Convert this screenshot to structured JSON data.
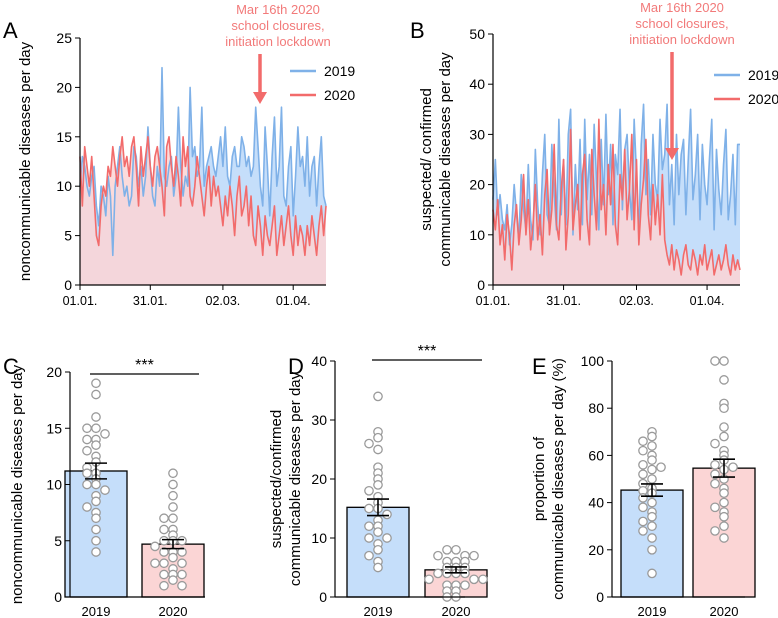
{
  "chart_data": [
    {
      "panel": "A",
      "type": "area",
      "ylabel": "noncommunicable diseases per day",
      "ylim": [
        0,
        25
      ],
      "yticks": [
        0,
        5,
        10,
        15,
        20,
        25
      ],
      "xlim": [
        0,
        105
      ],
      "xticks": [
        {
          "label": "01.01.",
          "day": 0
        },
        {
          "label": "31.01.",
          "day": 30
        },
        {
          "label": "02.03.",
          "day": 61
        },
        {
          "label": "01.04.",
          "day": 91
        }
      ],
      "annotation": {
        "lines": [
          "Mar 16th 2020",
          "school closures,",
          "initiation lockdown"
        ],
        "day": 75
      },
      "legend": {
        "position": "top-right",
        "entries": [
          "2019",
          "2020"
        ]
      },
      "series": [
        {
          "name": "2019",
          "color": "#7fb1e8",
          "fill": "#c5defa",
          "values": [
            10,
            13,
            12,
            10,
            9,
            11,
            12,
            8,
            6,
            10,
            9,
            7,
            11,
            9,
            3,
            10,
            12,
            14,
            11,
            9,
            10,
            8,
            9,
            14,
            13,
            10,
            12,
            9,
            11,
            16,
            12,
            9,
            8,
            12,
            10,
            22,
            11,
            10,
            12,
            13,
            9,
            11,
            18,
            12,
            9,
            11,
            10,
            20,
            13,
            14,
            11,
            12,
            18,
            10,
            12,
            13,
            14,
            12,
            11,
            13,
            15,
            12,
            16,
            11,
            10,
            13,
            14,
            12,
            12,
            15,
            14,
            12,
            13,
            11,
            12,
            18,
            14,
            10,
            8,
            16,
            12,
            7,
            13,
            17,
            10,
            12,
            18,
            9,
            8,
            12,
            14,
            7,
            11,
            16,
            12,
            13,
            10,
            15,
            9,
            12,
            13,
            8,
            12,
            15,
            9,
            8
          ]
        },
        {
          "name": "2020",
          "color": "#f26b6b",
          "fill": "#fbd5d5",
          "values": [
            13,
            8,
            14,
            12,
            10,
            13,
            9,
            5,
            4,
            8,
            10,
            9,
            12,
            11,
            14,
            12,
            10,
            13,
            15,
            12,
            13,
            11,
            14,
            15,
            12,
            8,
            14,
            11,
            13,
            15,
            12,
            10,
            13,
            14,
            12,
            10,
            7,
            14,
            15,
            12,
            10,
            13,
            11,
            8,
            15,
            12,
            14,
            9,
            8,
            10,
            13,
            11,
            9,
            7,
            10,
            12,
            8,
            11,
            9,
            10,
            8,
            6,
            9,
            7,
            10,
            8,
            5,
            9,
            11,
            7,
            8,
            10,
            6,
            9,
            5,
            4,
            8,
            6,
            3,
            7,
            5,
            4,
            6,
            8,
            3,
            5,
            7,
            4,
            6,
            8,
            5,
            3,
            7,
            4,
            6,
            5,
            3,
            6,
            4,
            7,
            5,
            3,
            6,
            8,
            5,
            8
          ]
        }
      ]
    },
    {
      "panel": "B",
      "type": "area",
      "ylabel": [
        "suspected/ confirmed",
        "communicable diseases per day"
      ],
      "ylim": [
        0,
        50
      ],
      "yticks": [
        0,
        10,
        20,
        30,
        40,
        50
      ],
      "xlim": [
        0,
        105
      ],
      "xticks": [
        {
          "label": "01.01.",
          "day": 0
        },
        {
          "label": "31.01.",
          "day": 30
        },
        {
          "label": "02.03.",
          "day": 61
        },
        {
          "label": "01.04.",
          "day": 91
        }
      ],
      "annotation": {
        "lines": [
          "Mar 16th 2020",
          "school closures,",
          "initiation lockdown"
        ],
        "day": 75
      },
      "legend": {
        "position": "top-right",
        "entries": [
          "2019",
          "2020"
        ]
      },
      "series": [
        {
          "name": "2019",
          "color": "#7fb1e8",
          "fill": "#c5defa",
          "values": [
            17,
            25,
            14,
            18,
            13,
            11,
            16,
            8,
            12,
            20,
            14,
            9,
            22,
            15,
            11,
            24,
            13,
            9,
            27,
            16,
            10,
            22,
            30,
            14,
            12,
            28,
            18,
            11,
            33,
            14,
            25,
            12,
            30,
            35,
            10,
            24,
            15,
            29,
            12,
            33,
            17,
            26,
            14,
            32,
            21,
            11,
            29,
            16,
            34,
            18,
            28,
            12,
            26,
            22,
            35,
            15,
            27,
            30,
            19,
            13,
            33,
            22,
            10,
            28,
            36,
            18,
            25,
            14,
            30,
            20,
            17,
            33,
            23,
            26,
            36,
            16,
            24,
            12,
            30,
            18,
            26,
            29,
            14,
            25,
            35,
            17,
            22,
            30,
            13,
            28,
            20,
            16,
            25,
            33,
            11,
            27,
            19,
            14,
            24,
            31,
            13,
            18,
            26,
            12,
            28,
            28
          ]
        },
        {
          "name": "2020",
          "color": "#f26b6b",
          "fill": "#fbd5d5",
          "values": [
            15,
            11,
            17,
            8,
            12,
            5,
            14,
            10,
            3,
            12,
            16,
            8,
            13,
            22,
            10,
            17,
            7,
            12,
            20,
            9,
            14,
            6,
            18,
            23,
            10,
            15,
            28,
            12,
            9,
            19,
            25,
            7,
            14,
            31,
            11,
            16,
            20,
            9,
            22,
            26,
            13,
            8,
            27,
            18,
            11,
            33,
            15,
            20,
            10,
            24,
            16,
            28,
            12,
            8,
            22,
            17,
            27,
            13,
            19,
            30,
            11,
            25,
            8,
            16,
            21,
            29,
            14,
            9,
            20,
            12,
            18,
            10,
            22,
            9,
            6,
            4,
            8,
            3,
            7,
            5,
            2,
            6,
            8,
            4,
            3,
            7,
            5,
            2,
            6,
            4,
            8,
            3,
            5,
            7,
            2,
            4,
            6,
            3,
            5,
            8,
            4,
            2,
            6,
            3,
            5,
            3
          ]
        }
      ]
    },
    {
      "panel": "C",
      "type": "bar",
      "categories": [
        "2019",
        "2020"
      ],
      "means": [
        11.2,
        4.7
      ],
      "sem": [
        0.7,
        0.4
      ],
      "ylabel": "noncommunicable diseases per day",
      "ylim": [
        0,
        20
      ],
      "yticks": [
        0,
        5,
        10,
        15,
        20
      ],
      "significance": "***",
      "points": [
        [
          19,
          18,
          16,
          15,
          15,
          14.5,
          14,
          14,
          13.5,
          13,
          12.5,
          12,
          11.5,
          11,
          11,
          10.5,
          10,
          10,
          9.5,
          9,
          8.5,
          8,
          7.5,
          7,
          6,
          5,
          4
        ],
        [
          11,
          10,
          9,
          8,
          7,
          7,
          6,
          6,
          5.5,
          5,
          5,
          5,
          4.5,
          4,
          4,
          4,
          3.5,
          3,
          3,
          3,
          2.5,
          2,
          2,
          2,
          1.5,
          1,
          1
        ]
      ],
      "colors": [
        "#c5defa",
        "#fbd5d5"
      ]
    },
    {
      "panel": "D",
      "type": "bar",
      "categories": [
        "2019",
        "2020"
      ],
      "means": [
        15.2,
        4.6
      ],
      "sem": [
        1.4,
        0.5
      ],
      "ylabel": [
        "suspected/confirmed",
        "communicable diseases per day"
      ],
      "ylim": [
        0,
        40
      ],
      "yticks": [
        0,
        10,
        20,
        30,
        40
      ],
      "significance": "***",
      "points": [
        [
          34,
          28,
          27,
          26,
          25,
          22,
          21,
          20,
          19,
          18,
          17,
          16,
          15,
          15,
          14,
          13,
          12,
          12,
          11,
          10,
          10,
          9,
          8,
          7,
          6,
          5
        ],
        [
          8,
          8,
          7,
          7,
          7,
          6,
          6,
          6,
          5,
          5,
          5,
          4,
          4,
          4,
          4,
          3,
          3,
          3,
          2,
          2,
          2,
          1,
          1,
          0,
          0
        ]
      ],
      "colors": [
        "#c5defa",
        "#fbd5d5"
      ]
    },
    {
      "panel": "E",
      "type": "bar",
      "categories": [
        "2019",
        "2020"
      ],
      "means": [
        45.3,
        54.6
      ],
      "sem": [
        2.6,
        3.8
      ],
      "ylabel": [
        "proportion of",
        "communicable diseases per day (%)"
      ],
      "ylim": [
        0,
        100
      ],
      "yticks": [
        0,
        20,
        40,
        60,
        80,
        100
      ],
      "points": [
        [
          70,
          68,
          66,
          64,
          62,
          60,
          58,
          56,
          55,
          54,
          52,
          50,
          48,
          46,
          45,
          44,
          42,
          40,
          38,
          36,
          34,
          32,
          30,
          28,
          25,
          20,
          10
        ],
        [
          100,
          100,
          92,
          82,
          80,
          72,
          68,
          65,
          62,
          60,
          58,
          56,
          55,
          54,
          52,
          50,
          48,
          46,
          44,
          40,
          38,
          36,
          34,
          30,
          28,
          25
        ]
      ],
      "colors": [
        "#c5defa",
        "#fbd5d5"
      ]
    }
  ],
  "xlabels_bar": [
    "2019",
    "2020"
  ],
  "annotation_text": [
    "Mar 16th 2020",
    "school closures,",
    "initiation lockdown"
  ],
  "panel_labels": [
    "A",
    "B",
    "C",
    "D",
    "E"
  ],
  "legend_text": [
    "2019",
    "2020"
  ],
  "sig_text": "***",
  "colors": {
    "blue": "#7fb1e8",
    "blue_fill": "#c5defa",
    "red": "#f26b6b",
    "red_fill": "#fbd5d5",
    "annotation": "#f27a7a"
  }
}
